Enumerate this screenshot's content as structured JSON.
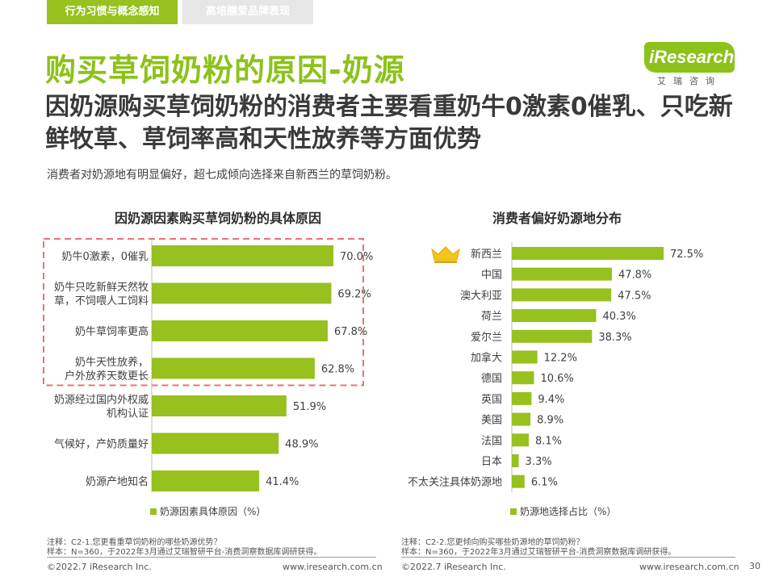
{
  "header": {
    "tabs": [
      "行为习惯与概念感知",
      "高培膳爱品牌表现"
    ]
  },
  "title": "购买草饲奶粉的原因-奶源",
  "subtitle": "因奶源购买草饲奶粉的消费者主要看重奶牛0激素0催乳、只吃新鲜牧草、草饲率高和天性放养等方面优势",
  "description": "消费者对奶源地有明显偏好，超七成倾向选择来自新西兰的草饲奶粉。",
  "logo": {
    "word": "iResearch",
    "cn": "艾瑞咨询"
  },
  "colors": {
    "accent": "#8cc21a",
    "bar": "#96c11f",
    "highlight_box": "#e8727a"
  },
  "chart_data": [
    {
      "type": "bar",
      "orientation": "horizontal",
      "title": "因奶源因素购买草饲奶粉的具体原因",
      "categories": [
        "奶牛0激素，0催乳",
        "奶牛只吃新鲜天然牧草，不饲喂人工饲料",
        "奶牛草饲率更高",
        "奶牛天性放养，户外放养天数更长",
        "奶源经过国内外权威机构认证",
        "气候好，产奶质量好",
        "奶源产地知名"
      ],
      "label_lines": [
        [
          "奶牛0激素，0催乳"
        ],
        [
          "奶牛只吃新鲜天然牧",
          "草，不饲喂人工饲料"
        ],
        [
          "奶牛草饲率更高"
        ],
        [
          "奶牛天性放养，",
          "户外放养天数更长"
        ],
        [
          "奶源经过国内外权威",
          "机构认证"
        ],
        [
          "气候好，产奶质量好"
        ],
        [
          "奶源产地知名"
        ]
      ],
      "values": [
        70.0,
        69.2,
        67.8,
        62.8,
        51.9,
        48.9,
        41.4
      ],
      "value_labels": [
        "70.0%",
        "69.2%",
        "67.8%",
        "62.8%",
        "51.9%",
        "48.9%",
        "41.4%"
      ],
      "legend": "奶源因素具体原因（%）",
      "highlighted_top": 4,
      "xlim": [
        0,
        100
      ]
    },
    {
      "type": "bar",
      "orientation": "horizontal",
      "title": "消费者偏好奶源地分布",
      "categories": [
        "新西兰",
        "中国",
        "澳大利亚",
        "荷兰",
        "爱尔兰",
        "加拿大",
        "德国",
        "英国",
        "美国",
        "法国",
        "日本",
        "不太关注具体奶源地"
      ],
      "values": [
        72.5,
        47.8,
        47.5,
        40.3,
        38.3,
        12.2,
        10.6,
        9.4,
        8.9,
        8.1,
        3.3,
        6.1
      ],
      "value_labels": [
        "72.5%",
        "47.8%",
        "47.5%",
        "40.3%",
        "38.3%",
        "12.2%",
        "10.6%",
        "9.4%",
        "8.9%",
        "8.1%",
        "3.3%",
        "6.1%"
      ],
      "legend": "奶源地选择占比（%）",
      "crown_on": "新西兰",
      "xlim": [
        0,
        100
      ]
    }
  ],
  "notes": {
    "left": [
      "注释：C2-1.您更看重草饲奶粉的哪些奶源优势？",
      "样本：N=360，于2022年3月通过艾瑞智研平台-消费洞察数据库调研获得。"
    ],
    "right": [
      "注释：C2-2.您更倾向购买哪些奶源地的草饲奶粉？",
      "样本：N=360，于2022年3月通过艾瑞智研平台-消费洞察数据库调研获得。"
    ]
  },
  "footer": {
    "left_copyright": "©2022.7 iResearch Inc.",
    "left_url": "www.iresearch.com.cn",
    "right_copyright": "©2022.7 iResearch Inc.",
    "right_url": "www.iresearch.com.cn",
    "page": "30"
  }
}
